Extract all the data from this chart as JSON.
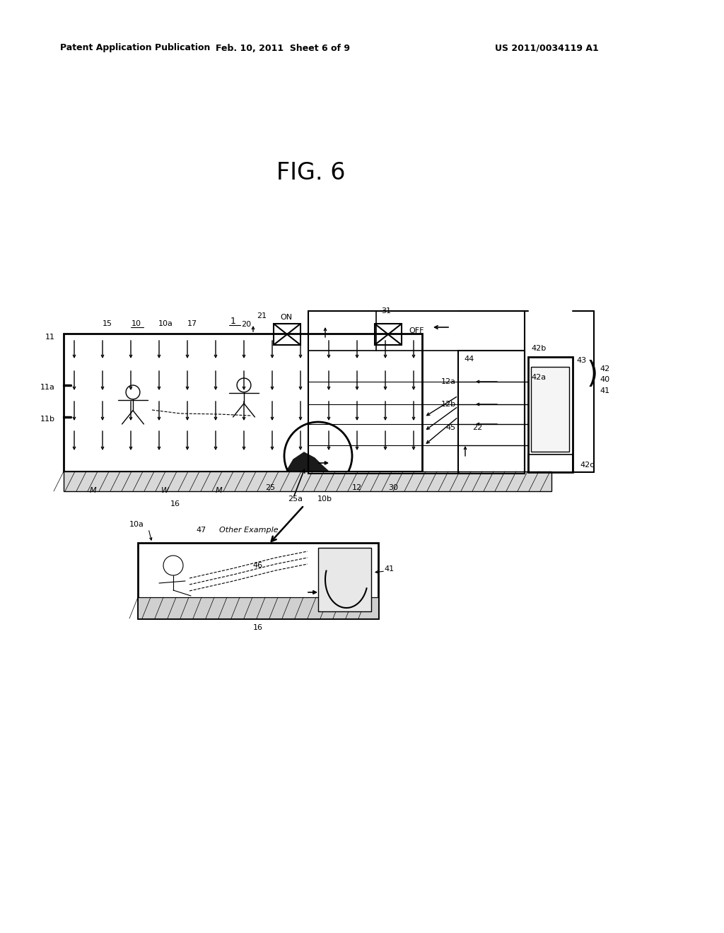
{
  "bg_color": "#ffffff",
  "lc": "#000000",
  "header_left": "Patent Application Publication",
  "header_mid": "Feb. 10, 2011  Sheet 6 of 9",
  "header_right": "US 2011/0034119 A1",
  "fig_label": "FIG. 6"
}
